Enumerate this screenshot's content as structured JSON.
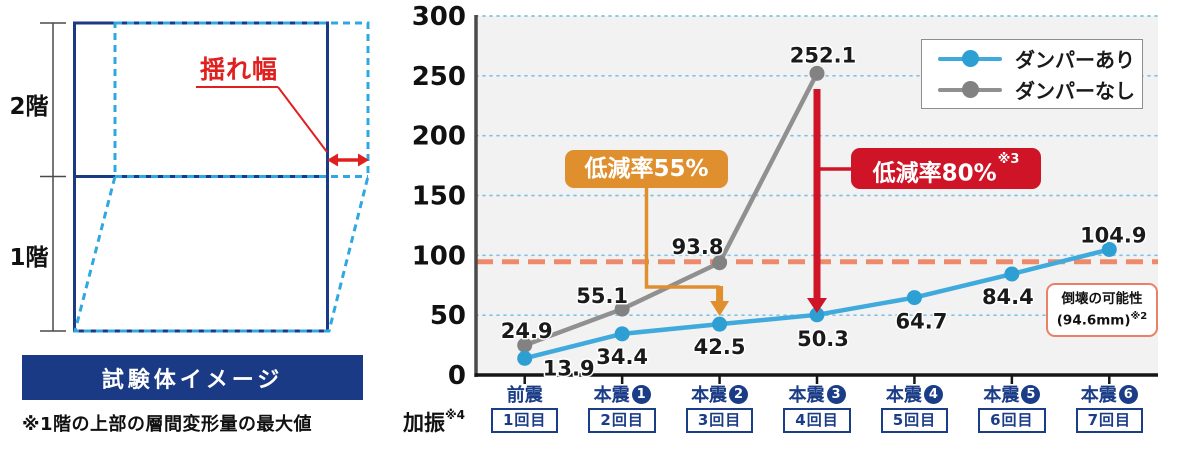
{
  "diagram": {
    "floor_labels": [
      "2階",
      "1階"
    ],
    "sway_label": "揺れ幅",
    "banner": "試験体イメージ",
    "caption": "※1階の上部の層間変形量の最大値",
    "colors": {
      "frame_solid_navy": "#1B3A85",
      "frame_dashed_cyan": "#2FA8E1",
      "annotation_red": "#E0201F"
    }
  },
  "chart_data": {
    "type": "line",
    "ylim": [
      0,
      300
    ],
    "ytick_step": 50,
    "grid": "horizontal dotted light-blue",
    "legend_position": "top-right",
    "x_axis_label": "加振",
    "x_axis_note": "※4",
    "categories": [
      {
        "name": "前震",
        "circled_num": null,
        "run": "1回目"
      },
      {
        "name": "本震",
        "circled_num": "1",
        "run": "2回目"
      },
      {
        "name": "本震",
        "circled_num": "2",
        "run": "3回目"
      },
      {
        "name": "本震",
        "circled_num": "3",
        "run": "4回目"
      },
      {
        "name": "本震",
        "circled_num": "4",
        "run": "5回目"
      },
      {
        "name": "本震",
        "circled_num": "5",
        "run": "6回目"
      },
      {
        "name": "本震",
        "circled_num": "6",
        "run": "7回目"
      }
    ],
    "series": [
      {
        "name": "ダンパーあり",
        "color": "#41AADC",
        "dot_color": "#2D9FD3",
        "values": [
          13.9,
          34.4,
          42.5,
          50.3,
          64.7,
          84.4,
          104.9
        ],
        "label_offsets": [
          [
            44,
            17
          ],
          [
            0,
            30
          ],
          [
            0,
            30
          ],
          [
            6,
            31
          ],
          [
            7,
            31
          ],
          [
            -4,
            30
          ],
          [
            4,
            -7
          ]
        ]
      },
      {
        "name": "ダンパーなし",
        "color": "#909090",
        "dot_color": "#828282",
        "values": [
          24.9,
          55.1,
          93.8,
          252.1,
          null,
          null,
          null
        ],
        "label_offsets": [
          [
            2,
            -7
          ],
          [
            -20,
            -6
          ],
          [
            -22,
            -9
          ],
          [
            6,
            -11
          ]
        ]
      }
    ],
    "threshold_line": {
      "value": 94.6,
      "color": "#EE8A6B",
      "label_line1": "倒壊の可能性",
      "label_line2": "(94.6mm)",
      "label_note": "※2"
    },
    "annotations": [
      {
        "text": "低減率55%",
        "note": "",
        "color": "#DF8F2D",
        "target_category_index": 2
      },
      {
        "text": "低減率80%",
        "note": "※3",
        "color": "#CE1426",
        "target_category_index": 3
      }
    ],
    "colors": {
      "gridline": "#7EC3E8",
      "plot_background": "#F2F2F3",
      "y_axis": "#4a4a4a",
      "x_axis": "#151515",
      "category_navy": "#1B3C87"
    }
  }
}
